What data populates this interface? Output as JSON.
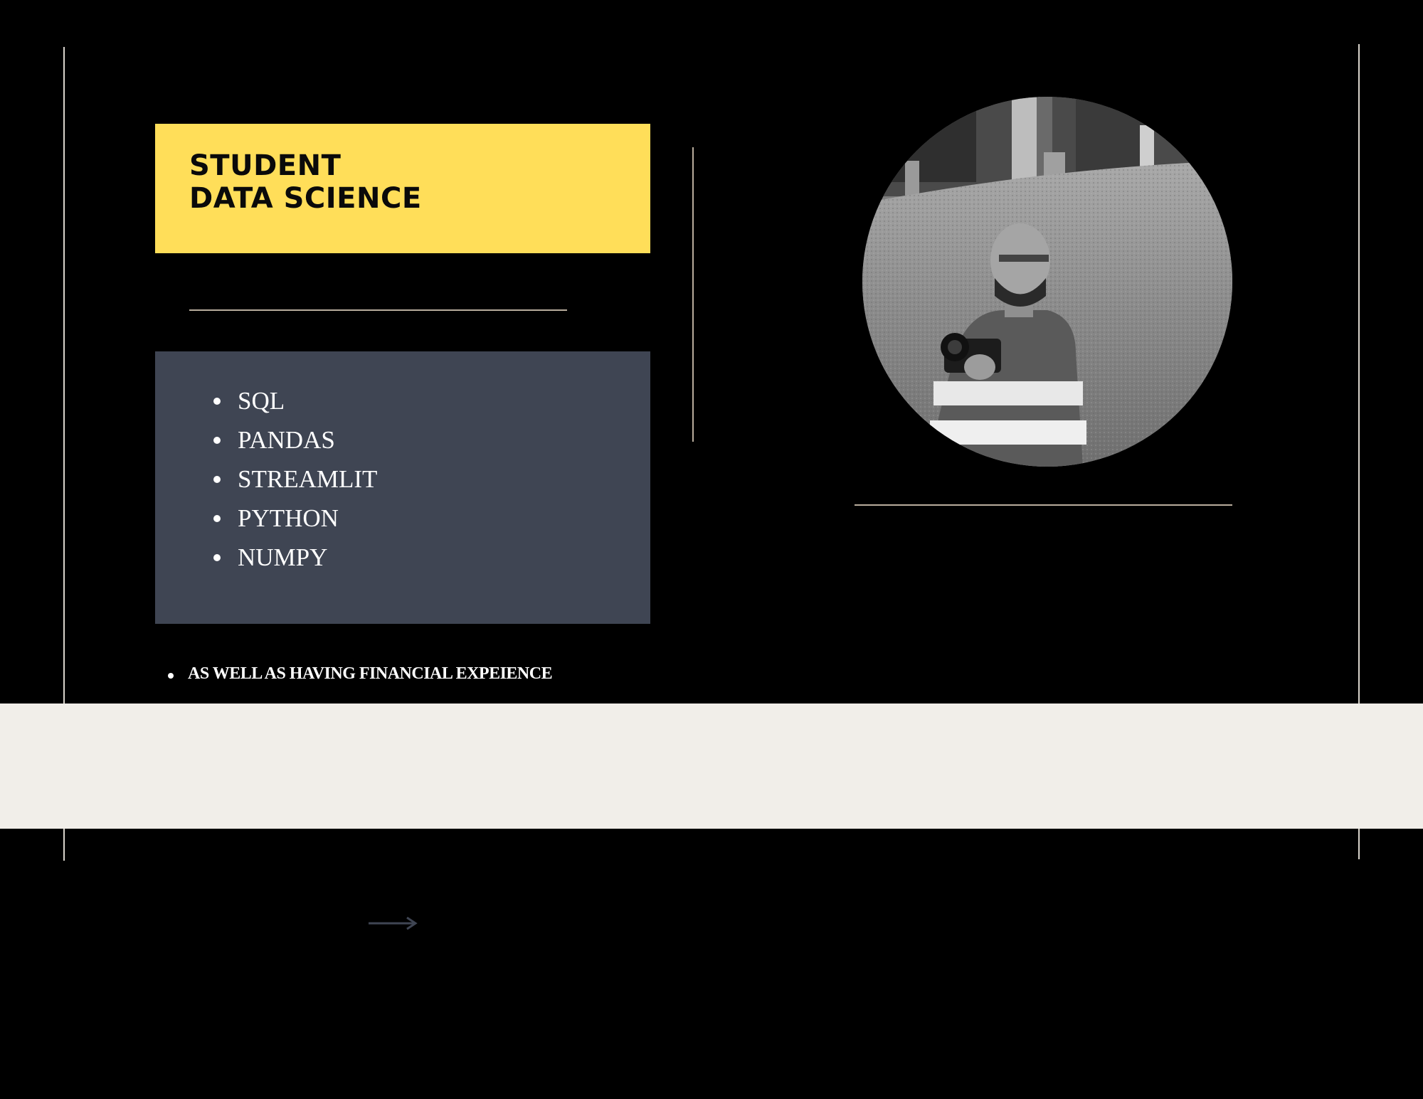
{
  "title": {
    "line1": "STUDENT",
    "line2": "DATA SCIENCE"
  },
  "skills": [
    "SQL",
    "PANDAS",
    "STREAMLIT",
    "PYTHON",
    "NUMPY"
  ],
  "note": "AS WELL AS HAVING FINANCIAL EXPEIENCE",
  "photo": {
    "subject": "black-and-white portrait of a man holding a camera on a grassy slope"
  },
  "colors": {
    "background": "#000000",
    "title_box": "#ffde59",
    "skills_box": "#3f4553",
    "band": "#f1eee9",
    "rule": "#b9ad9d",
    "arrow": "#3f4553"
  },
  "icons": [
    "arrow-right-icon"
  ]
}
